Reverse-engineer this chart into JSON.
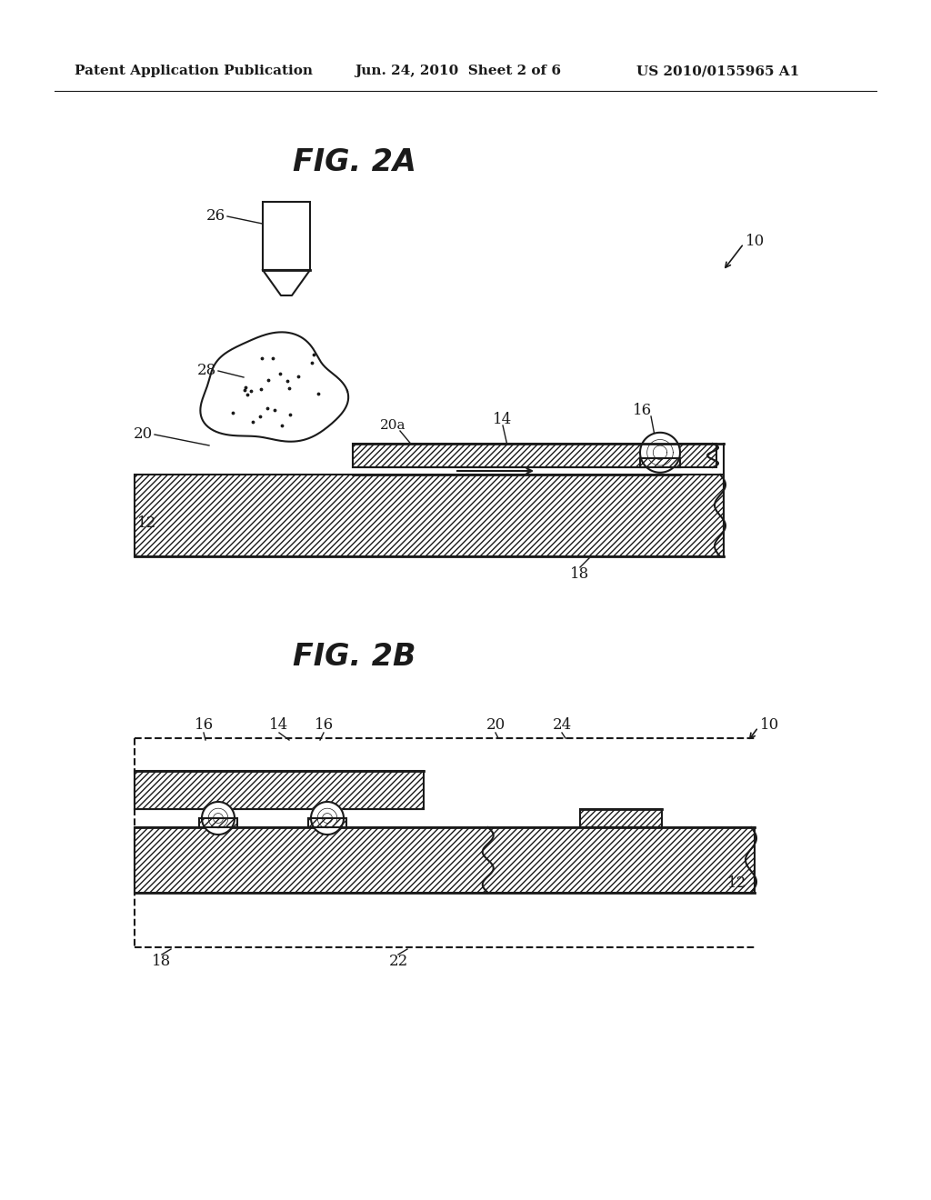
{
  "bg_color": "#ffffff",
  "header_left": "Patent Application Publication",
  "header_mid": "Jun. 24, 2010  Sheet 2 of 6",
  "header_right": "US 2010/0155965 A1",
  "fig2a_title": "FIG. 2A",
  "fig2b_title": "FIG. 2B",
  "line_color": "#1a1a1a"
}
